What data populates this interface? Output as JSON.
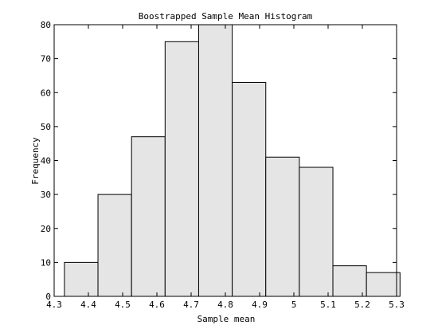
{
  "chart_data": {
    "type": "bar",
    "title": "Boostrapped Sample Mean Histogram",
    "xlabel": "Sample mean",
    "ylabel": "Frequency",
    "xlim": [
      4.3,
      5.3
    ],
    "ylim": [
      0,
      80
    ],
    "x_ticks": [
      "4.3",
      "4.4",
      "4.5",
      "4.6",
      "4.7",
      "4.8",
      "4.9",
      "5",
      "5.1",
      "5.2",
      "5.3"
    ],
    "y_ticks": [
      "0",
      "10",
      "20",
      "30",
      "40",
      "50",
      "60",
      "70",
      "80"
    ],
    "bin_edges": [
      4.33,
      4.428,
      4.526,
      4.624,
      4.722,
      4.82,
      4.918,
      5.016,
      5.114,
      5.212,
      5.31
    ],
    "values": [
      10,
      30,
      47,
      75,
      80,
      63,
      41,
      38,
      9,
      7
    ],
    "grid": false,
    "bar_fill": "#e5e5e5",
    "bar_stroke": "#000000"
  }
}
